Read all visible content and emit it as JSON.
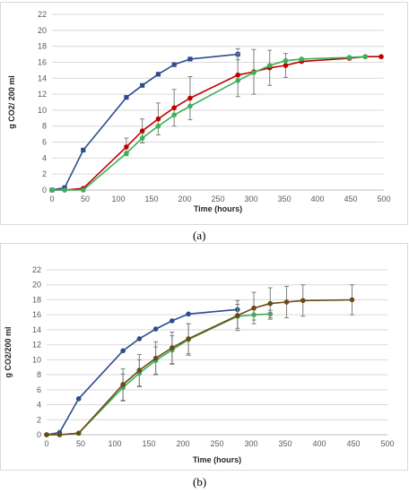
{
  "chart_data": [
    {
      "type": "line",
      "panel_label": "(a)",
      "xlabel": "Time (hours)",
      "ylabel": "g CO2/ 200 ml",
      "xlim": [
        0,
        500
      ],
      "ylim": [
        0,
        22
      ],
      "x_ticks": [
        0,
        50,
        100,
        150,
        200,
        250,
        300,
        350,
        400,
        450,
        500
      ],
      "y_ticks": [
        0,
        2,
        4,
        6,
        8,
        10,
        12,
        14,
        16,
        18,
        20,
        22
      ],
      "grid": "horizontal",
      "series": [
        {
          "color": "#2e4c8f",
          "marker": "square",
          "x": [
            0,
            19,
            47,
            112,
            136,
            160,
            184,
            208,
            280
          ],
          "y": [
            0,
            0.3,
            5.0,
            11.6,
            13.1,
            14.5,
            15.7,
            16.4,
            17.0
          ],
          "err": [
            0,
            0,
            0,
            0,
            0,
            0,
            0,
            0,
            0.7
          ]
        },
        {
          "color": "#c00000",
          "marker": "circle",
          "x": [
            0,
            19,
            47,
            112,
            136,
            160,
            184,
            208,
            280,
            304,
            328,
            352,
            376,
            448,
            472,
            496
          ],
          "y": [
            0,
            0,
            0.2,
            5.4,
            7.4,
            8.9,
            10.3,
            11.5,
            14.4,
            14.8,
            15.3,
            15.6,
            16.1,
            16.5,
            16.7,
            16.7
          ],
          "err": [
            0,
            0,
            0,
            1.1,
            1.5,
            2.0,
            2.3,
            2.7,
            2.7,
            2.8,
            2.2,
            1.5,
            0,
            0,
            0,
            0
          ]
        },
        {
          "color": "#3cb05a",
          "marker": "circle",
          "x": [
            0,
            19,
            47,
            112,
            136,
            160,
            184,
            208,
            280,
            304,
            328,
            352,
            376,
            448,
            472
          ],
          "y": [
            0,
            0,
            0,
            4.6,
            6.5,
            8.0,
            9.4,
            10.5,
            13.7,
            14.7,
            15.6,
            16.2,
            16.4,
            16.6,
            16.7
          ],
          "err": [
            0,
            0,
            0,
            0,
            0.6,
            0,
            0,
            0,
            0,
            0,
            0,
            0,
            0,
            0,
            0
          ]
        }
      ]
    },
    {
      "type": "line",
      "panel_label": "(b)",
      "xlabel": "Time (hours)",
      "ylabel": "g CO2/200 ml",
      "xlim": [
        0,
        500
      ],
      "ylim": [
        0,
        22
      ],
      "x_ticks": [
        0,
        50,
        100,
        150,
        200,
        250,
        300,
        350,
        400,
        450,
        500
      ],
      "y_ticks": [
        0,
        2,
        4,
        6,
        8,
        10,
        12,
        14,
        16,
        18,
        20,
        22
      ],
      "grid": "horizontal",
      "series": [
        {
          "color": "#2e4c8f",
          "marker": "circle",
          "x": [
            0,
            19,
            47,
            112,
            136,
            160,
            184,
            208,
            280
          ],
          "y": [
            0,
            0.3,
            4.8,
            11.2,
            12.8,
            14.1,
            15.2,
            16.1,
            16.7
          ],
          "err": [
            0,
            0,
            0,
            0,
            0,
            0,
            0,
            0,
            0
          ]
        },
        {
          "color": "#3cb05a",
          "marker": "circle",
          "x": [
            0,
            19,
            47,
            112,
            136,
            160,
            184,
            208,
            280,
            304,
            328
          ],
          "y": [
            0,
            0,
            0.2,
            6.3,
            8.2,
            9.9,
            11.3,
            12.7,
            15.8,
            16.0,
            16.1
          ],
          "err": [
            0,
            0,
            0,
            1.8,
            1.8,
            1.8,
            1.9,
            2.1,
            1.6,
            0.7,
            0.5
          ]
        },
        {
          "color": "#6b4a14",
          "marker": "circle",
          "x": [
            0,
            19,
            47,
            112,
            136,
            160,
            184,
            208,
            280,
            304,
            328,
            352,
            376,
            448
          ],
          "y": [
            0,
            0,
            0.2,
            6.7,
            8.6,
            10.2,
            11.6,
            12.8,
            15.9,
            16.9,
            17.5,
            17.7,
            17.9,
            18.0
          ],
          "err": [
            0,
            0,
            0,
            2.1,
            2.1,
            2.2,
            2.1,
            2.0,
            2.0,
            2.1,
            2.1,
            2.1,
            2.1,
            2.0
          ]
        }
      ]
    }
  ]
}
